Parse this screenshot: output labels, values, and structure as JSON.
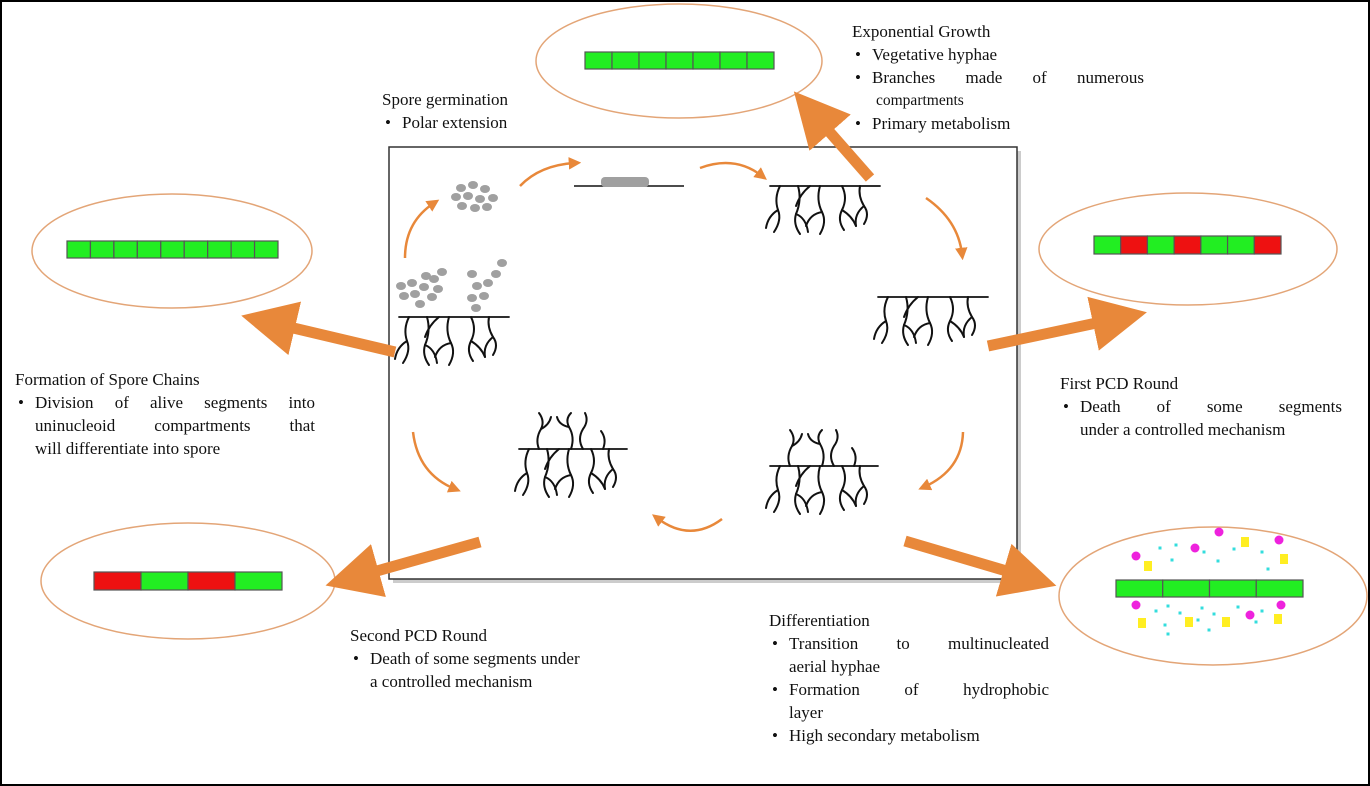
{
  "stages": {
    "spore_germination": {
      "title": "Spore germination",
      "points": [
        "Polar extension"
      ]
    },
    "exponential_growth": {
      "title": "Exponential Growth",
      "points": [
        "Vegetative hyphae",
        "Branches made of numerous",
        "compartments",
        "Primary metabolism"
      ]
    },
    "first_pcd": {
      "title": "First PCD Round",
      "points": [
        "Death of some segments",
        "under a controlled mechanism"
      ]
    },
    "differentiation": {
      "title": "Differentiation",
      "points": [
        "Transition to multinucleated",
        "aerial hyphae",
        "Formation of hydrophobic",
        "layer",
        "High secondary metabolism"
      ]
    },
    "second_pcd": {
      "title": "Second PCD Round",
      "points": [
        "Death of some segments under",
        "a controlled mechanism"
      ]
    },
    "spore_chains": {
      "title": "Formation of Spore Chains",
      "points": [
        "Division of alive segments into",
        "uninucleoid compartments that",
        "will differentiate into spore"
      ]
    }
  },
  "colors": {
    "alive": "#22ee22",
    "dead": "#ee1111",
    "arrow": "#e8883a",
    "ellipse": "#e3a577",
    "dot_magenta": "#ee22dd",
    "dot_yellow": "#ffee22",
    "dot_cyan": "#33dddd",
    "spore": "#a0a0a0"
  },
  "segment_bars": {
    "exponential_growth": [
      "alive",
      "alive",
      "alive",
      "alive",
      "alive",
      "alive",
      "alive"
    ],
    "spore_chains": [
      "alive",
      "alive",
      "alive",
      "alive",
      "alive",
      "alive",
      "alive",
      "alive",
      "alive"
    ],
    "first_pcd": [
      "alive",
      "dead",
      "alive",
      "dead",
      "alive",
      "alive",
      "dead"
    ],
    "second_pcd": [
      "dead",
      "alive",
      "dead",
      "alive"
    ],
    "differentiation": [
      "alive",
      "alive",
      "alive",
      "alive"
    ]
  }
}
